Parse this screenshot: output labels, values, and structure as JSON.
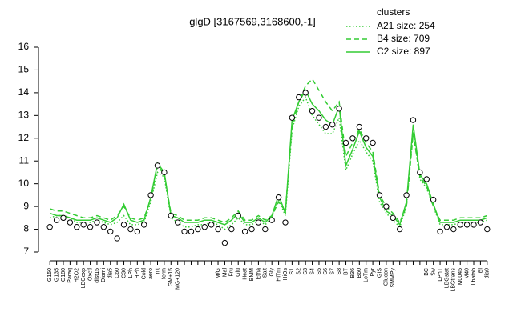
{
  "chart_data": {
    "type": "line",
    "title": "glgD [3167569,3168600,-1]",
    "legend_title": "clusters",
    "legend_position": "top-right",
    "categories": [
      "G150",
      "G135",
      "G180",
      "Paraq",
      "H2O2",
      "LBGexp",
      "Oxctl",
      "dist15",
      "Diami",
      "dia5",
      "C60",
      "C30",
      "LPh",
      "HPh",
      "Cold",
      "aero",
      "nit",
      "ferm",
      "GM+15",
      "MG+120",
      null,
      null,
      null,
      null,
      null,
      "M/G",
      "Mal",
      "Fru",
      "Glu",
      "Heat",
      "BMM",
      "Etha",
      "Salt",
      "Gly",
      "HiTm",
      "HiOs",
      "S1",
      "S2",
      "S3",
      "S4",
      "S5",
      "S6",
      "S7",
      "S8",
      "BT",
      "B36",
      "B60",
      "LoTm",
      "Pyr",
      "GIS",
      "Glucon",
      "SMMPy",
      null,
      null,
      null,
      null,
      "BC",
      "Sw",
      "LPhT",
      "LBGstat",
      "LBGtrans",
      "M0045",
      "M40",
      "Lbatab",
      "Bl",
      "dia0"
    ],
    "values": [
      8.1,
      8.4,
      8.5,
      8.3,
      8.1,
      8.2,
      8.1,
      8.3,
      8.1,
      7.9,
      7.6,
      8.2,
      8.0,
      7.9,
      8.2,
      9.5,
      10.8,
      10.5,
      8.6,
      8.3,
      7.9,
      7.9,
      8.0,
      8.1,
      8.2,
      8.0,
      7.4,
      8.0,
      8.6,
      7.9,
      8.0,
      8.3,
      8.0,
      8.4,
      9.4,
      8.3,
      12.9,
      13.8,
      14.0,
      13.2,
      12.9,
      12.5,
      12.6,
      13.3,
      11.8,
      12.0,
      12.5,
      12.0,
      11.8,
      9.5,
      9.0,
      8.5,
      8.0,
      9.5,
      12.8,
      10.5,
      10.2,
      9.3,
      7.9,
      8.1,
      8.0,
      8.2,
      8.2,
      8.2,
      8.3,
      8.0
    ],
    "series": [
      {
        "name": "A21 size: 254",
        "color": "#33cc33",
        "line_style": "dotted",
        "values": [
          8.5,
          8.6,
          8.6,
          8.5,
          8.3,
          8.3,
          8.3,
          8.4,
          8.3,
          8.2,
          8.3,
          8.6,
          8.2,
          8.2,
          8.3,
          9.2,
          10.5,
          10.3,
          8.5,
          8.3,
          8.1,
          8.1,
          8.2,
          8.2,
          8.3,
          8.2,
          8.0,
          8.2,
          8.5,
          8.2,
          8.2,
          8.4,
          8.2,
          8.5,
          9.3,
          8.6,
          12.4,
          13.4,
          13.8,
          13.0,
          12.6,
          12.2,
          12.2,
          12.9,
          10.6,
          11.3,
          11.9,
          11.4,
          11.0,
          9.2,
          8.7,
          8.4,
          8.1,
          9.0,
          12.3,
          10.2,
          9.8,
          9.0,
          8.2,
          8.2,
          8.2,
          8.3,
          8.3,
          8.3,
          8.3,
          8.4
        ]
      },
      {
        "name": "B4 size: 709",
        "color": "#33cc33",
        "line_style": "dashed",
        "values": [
          8.9,
          8.8,
          8.8,
          8.7,
          8.6,
          8.5,
          8.5,
          8.6,
          8.5,
          8.4,
          8.6,
          9.0,
          8.5,
          8.4,
          8.5,
          9.3,
          10.8,
          10.4,
          8.7,
          8.6,
          8.4,
          8.4,
          8.4,
          8.5,
          8.5,
          8.4,
          8.3,
          8.5,
          8.8,
          8.4,
          8.4,
          8.6,
          8.4,
          8.6,
          9.2,
          8.8,
          12.5,
          13.6,
          14.3,
          14.6,
          14.1,
          13.6,
          13.2,
          13.6,
          11.2,
          11.8,
          12.4,
          11.8,
          11.4,
          9.5,
          9.0,
          8.7,
          8.3,
          9.0,
          12.2,
          10.3,
          9.9,
          9.0,
          8.4,
          8.4,
          8.4,
          8.5,
          8.5,
          8.5,
          8.5,
          8.6
        ]
      },
      {
        "name": "C2 size: 897",
        "color": "#33cc33",
        "line_style": "solid",
        "values": [
          8.7,
          8.6,
          8.6,
          8.5,
          8.4,
          8.4,
          8.4,
          8.5,
          8.4,
          8.3,
          8.5,
          9.1,
          8.4,
          8.3,
          8.4,
          9.4,
          10.9,
          10.5,
          8.6,
          8.5,
          8.3,
          8.3,
          8.3,
          8.4,
          8.4,
          8.3,
          8.2,
          8.4,
          8.7,
          8.3,
          8.3,
          8.5,
          8.3,
          8.6,
          9.5,
          8.7,
          12.8,
          13.6,
          14.1,
          13.5,
          13.2,
          12.8,
          12.6,
          13.4,
          10.8,
          11.5,
          12.3,
          11.6,
          11.2,
          9.4,
          8.8,
          8.6,
          8.2,
          9.2,
          12.6,
          10.4,
          10.0,
          9.1,
          8.3,
          8.3,
          8.3,
          8.4,
          8.4,
          8.4,
          8.4,
          8.5
        ]
      }
    ],
    "ylim": [
      7,
      16
    ],
    "yticks": [
      7,
      8,
      9,
      10,
      11,
      12,
      13,
      14,
      15,
      16
    ]
  }
}
